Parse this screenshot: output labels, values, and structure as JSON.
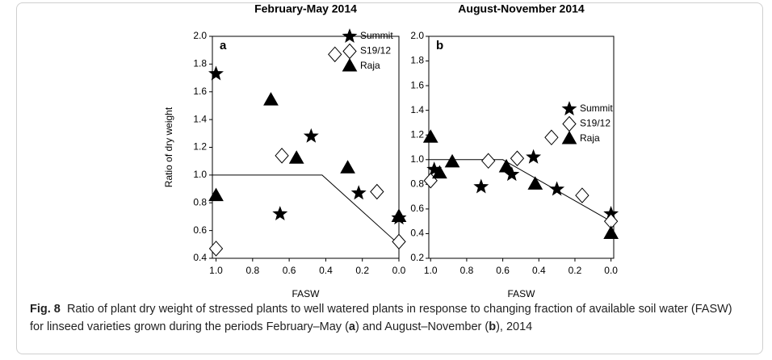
{
  "chart_data": [
    {
      "type": "scatter",
      "title": "February-May 2014",
      "panel_label": "a",
      "xlabel": "FASW",
      "ylabel": "Ratio of dry weight",
      "xlim": [
        1.02,
        0.0
      ],
      "ylim": [
        0.4,
        2.0
      ],
      "xticks": [
        {
          "value": 1,
          "label": "1.0"
        },
        0.8,
        0.6,
        0.4,
        0.2,
        {
          "value": 0,
          "label": "0.0"
        }
      ],
      "yticks": [
        0.4,
        0.6,
        0.8,
        {
          "value": 1,
          "label": "1.0"
        },
        1.2,
        1.4,
        1.6,
        1.8,
        {
          "value": 2,
          "label": "2.0"
        }
      ],
      "legend": "upper right",
      "series": [
        {
          "name": "Summit",
          "marker": "star",
          "color": "#000000",
          "x": [
            1.0,
            0.65,
            0.48,
            0.22,
            0.0
          ],
          "y": [
            1.73,
            0.72,
            1.28,
            0.87,
            0.69
          ]
        },
        {
          "name": "S19/12",
          "marker": "diamond",
          "color": "#ffffff",
          "x": [
            1.0,
            0.64,
            0.35,
            0.12,
            0.0
          ],
          "y": [
            0.47,
            1.14,
            1.87,
            0.88,
            0.52
          ]
        },
        {
          "name": "Raja",
          "marker": "triangle",
          "color": "#000000",
          "x": [
            1.0,
            0.7,
            0.56,
            0.28,
            0.0
          ],
          "y": [
            0.85,
            1.54,
            1.12,
            1.05,
            0.7
          ]
        }
      ],
      "line": {
        "x": [
          1.02,
          0.42,
          0.0
        ],
        "y": [
          1.0,
          1.0,
          0.5
        ]
      }
    },
    {
      "type": "scatter",
      "title": "August-November 2014",
      "panel_label": "b",
      "xlabel": "FASW",
      "xlim": [
        1.01,
        -0.015
      ],
      "ylim": [
        0.2,
        2.0
      ],
      "xticks": [
        {
          "value": 1,
          "label": "1.0"
        },
        0.8,
        0.6,
        0.4,
        0.2,
        {
          "value": 0,
          "label": "0.0"
        }
      ],
      "yticks": [
        0.2,
        0.4,
        0.6,
        0.8,
        {
          "value": 1,
          "label": "1.0"
        },
        1.2,
        1.4,
        1.6,
        1.8,
        {
          "value": 2,
          "label": "2.0"
        }
      ],
      "legend": "upper right",
      "series": [
        {
          "name": "Summit",
          "marker": "star",
          "color": "#000000",
          "x": [
            0.98,
            0.72,
            0.55,
            0.43,
            0.3,
            0.0
          ],
          "y": [
            0.92,
            0.78,
            0.88,
            1.02,
            0.76,
            0.56
          ]
        },
        {
          "name": "S19/12",
          "marker": "diamond",
          "color": "#ffffff",
          "x": [
            1.0,
            0.68,
            0.52,
            0.33,
            0.16,
            0.0
          ],
          "y": [
            0.83,
            0.99,
            1.01,
            1.18,
            0.71,
            0.5
          ]
        },
        {
          "name": "Raja",
          "marker": "triangle",
          "color": "#000000",
          "x": [
            1.0,
            0.95,
            0.88,
            0.58,
            0.42,
            0.0
          ],
          "y": [
            1.18,
            0.89,
            0.98,
            0.94,
            0.8,
            0.4
          ]
        }
      ],
      "line": {
        "x": [
          1.01,
          0.6,
          0.0
        ],
        "y": [
          1.0,
          1.0,
          0.5
        ]
      }
    }
  ],
  "caption": {
    "label": "Fig. 8",
    "parts": [
      "Ratio of plant dry weight of stressed plants to well watered plants in response to changing fraction of available soil water (FASW) for linseed varieties grown during the periods February–May (",
      "a",
      ") and August–November (",
      "b",
      "), 2014"
    ]
  }
}
